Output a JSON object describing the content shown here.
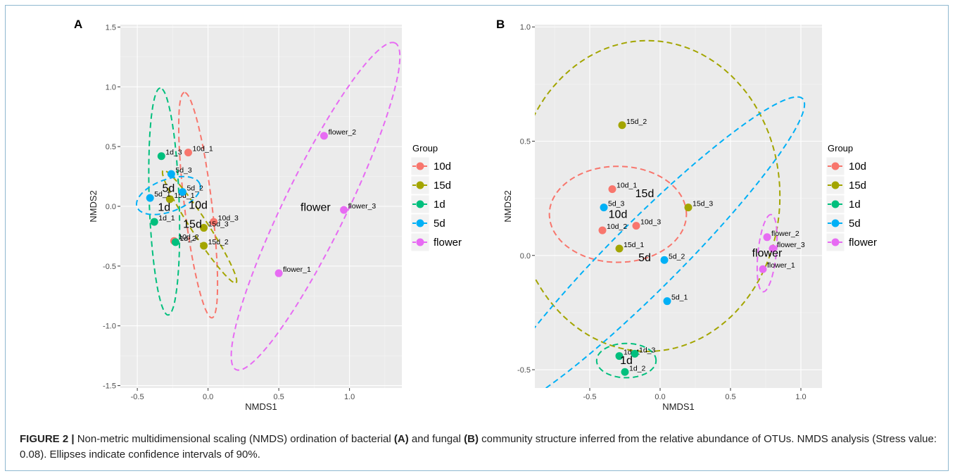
{
  "caption": {
    "figure_label": "FIGURE 2 |",
    "t1": " Non-metric multidimensional scaling (NMDS) ordination of bacterial ",
    "a_ref": "(A)",
    "t2": " and fungal ",
    "b_ref": "(B)",
    "t3": " community structure inferred from the relative abundance of OTUs. NMDS analysis (Stress value: 0.08). Ellipses indicate confidence intervals of 90%."
  },
  "colors": {
    "10d": "#f8766d",
    "15d": "#a3a500",
    "1d": "#00bf7d",
    "5d": "#00b0f6",
    "flower": "#e76bf3",
    "panel_bg": "#ebebeb",
    "grid": "#ffffff"
  },
  "chart_data": [
    {
      "type": "scatter",
      "panel_label": "A",
      "xlabel": "NMDS1",
      "ylabel": "NMDS2",
      "xlim": [
        -0.62,
        1.37
      ],
      "ylim": [
        -1.52,
        1.52
      ],
      "xticks": [
        -0.5,
        0.0,
        0.5,
        1.0
      ],
      "xtick_labels": [
        "-0.5",
        "0.0",
        "0.5",
        "1.0"
      ],
      "yticks": [
        -1.5,
        -1.0,
        -0.5,
        0.0,
        0.5,
        1.0,
        1.5
      ],
      "ytick_labels": [
        "-1.5",
        "-1.0",
        "-0.5",
        "0.0",
        "0.5",
        "1.0",
        "1.5"
      ],
      "grid": true,
      "legend": {
        "title": "Group",
        "placement": "right",
        "entries": [
          "10d",
          "15d",
          "1d",
          "5d",
          "flower"
        ]
      },
      "points": [
        {
          "label": "10d_1",
          "group": "10d",
          "x": -0.14,
          "y": 0.45
        },
        {
          "label": "10d_2",
          "group": "10d",
          "x": -0.24,
          "y": -0.29
        },
        {
          "label": "10d_3",
          "group": "10d",
          "x": 0.04,
          "y": -0.13
        },
        {
          "label": "15d_1",
          "group": "15d",
          "x": -0.27,
          "y": 0.06
        },
        {
          "label": "15d_2",
          "group": "15d",
          "x": -0.03,
          "y": -0.33
        },
        {
          "label": "15d_3",
          "group": "15d",
          "x": -0.03,
          "y": -0.18
        },
        {
          "label": "1d_1",
          "group": "1d",
          "x": -0.38,
          "y": -0.13
        },
        {
          "label": "1d_2",
          "group": "1d",
          "x": -0.23,
          "y": -0.3
        },
        {
          "label": "1d_3",
          "group": "1d",
          "x": -0.33,
          "y": 0.42
        },
        {
          "label": "5d_1",
          "group": "5d",
          "x": -0.41,
          "y": 0.07
        },
        {
          "label": "5d_2",
          "group": "5d",
          "x": -0.18,
          "y": 0.12
        },
        {
          "label": "5d_3",
          "group": "5d",
          "x": -0.26,
          "y": 0.27
        },
        {
          "label": "flower_1",
          "group": "flower",
          "x": 0.5,
          "y": -0.56
        },
        {
          "label": "flower_2",
          "group": "flower",
          "x": 0.82,
          "y": 0.59
        },
        {
          "label": "flower_3",
          "group": "flower",
          "x": 0.96,
          "y": -0.03
        }
      ],
      "group_labels": [
        {
          "text": "10d",
          "x": -0.07,
          "y": 0.01
        },
        {
          "text": "15d",
          "x": -0.11,
          "y": -0.15
        },
        {
          "text": "1d",
          "x": -0.31,
          "y": -0.01
        },
        {
          "text": "5d",
          "x": -0.28,
          "y": 0.15
        },
        {
          "text": "flower",
          "x": 0.76,
          "y": -0.01
        }
      ],
      "ellipses": [
        {
          "group": "10d",
          "cx": -0.07,
          "cy": 0.01,
          "rx": 0.95,
          "ry": 0.115,
          "angle_deg": 97
        },
        {
          "group": "15d",
          "cx": -0.06,
          "cy": -0.17,
          "rx": 0.56,
          "ry": 0.07,
          "angle_deg": -57
        },
        {
          "group": "1d",
          "cx": -0.31,
          "cy": 0.04,
          "rx": 0.95,
          "ry": 0.125,
          "angle_deg": 92
        },
        {
          "group": "5d",
          "cx": -0.28,
          "cy": 0.09,
          "rx": 0.28,
          "ry": 0.135,
          "angle_deg": 20
        },
        {
          "group": "flower",
          "cx": 0.76,
          "cy": 0.0,
          "rx": 1.52,
          "ry": 0.26,
          "angle_deg": 64
        }
      ]
    },
    {
      "type": "scatter",
      "panel_label": "B",
      "xlabel": "NMDS1",
      "ylabel": "NMDS2",
      "xlim": [
        -0.89,
        1.15
      ],
      "ylim": [
        -0.58,
        1.01
      ],
      "xticks": [
        -0.5,
        0.0,
        0.5,
        1.0
      ],
      "xtick_labels": [
        "-0.5",
        "0.0",
        "0.5",
        "1.0"
      ],
      "yticks": [
        -0.5,
        0.0,
        0.5,
        1.0
      ],
      "ytick_labels": [
        "-0.5",
        "0.0",
        "0.5",
        "1.0"
      ],
      "grid": true,
      "legend": {
        "title": "Group",
        "placement": "right",
        "entries": [
          "10d",
          "15d",
          "1d",
          "5d",
          "flower"
        ]
      },
      "points": [
        {
          "label": "10d_1",
          "group": "10d",
          "x": -0.34,
          "y": 0.29
        },
        {
          "label": "10d_2",
          "group": "10d",
          "x": -0.41,
          "y": 0.11
        },
        {
          "label": "10d_3",
          "group": "10d",
          "x": -0.17,
          "y": 0.13
        },
        {
          "label": "15d_1",
          "group": "15d",
          "x": -0.29,
          "y": 0.03
        },
        {
          "label": "15d_2",
          "group": "15d",
          "x": -0.27,
          "y": 0.57
        },
        {
          "label": "15d_3",
          "group": "15d",
          "x": 0.2,
          "y": 0.21
        },
        {
          "label": "1d_1",
          "group": "1d",
          "x": -0.29,
          "y": -0.44
        },
        {
          "label": "1d_2",
          "group": "1d",
          "x": -0.25,
          "y": -0.51
        },
        {
          "label": "1d_3",
          "group": "1d",
          "x": -0.18,
          "y": -0.43
        },
        {
          "label": "5d_1",
          "group": "5d",
          "x": 0.05,
          "y": -0.2
        },
        {
          "label": "5d_2",
          "group": "5d",
          "x": 0.03,
          "y": -0.02
        },
        {
          "label": "5d_3",
          "group": "5d",
          "x": -0.4,
          "y": 0.21
        },
        {
          "label": "flower_1",
          "group": "flower",
          "x": 0.73,
          "y": -0.06
        },
        {
          "label": "flower_2",
          "group": "flower",
          "x": 0.76,
          "y": 0.08
        },
        {
          "label": "flower_3",
          "group": "flower",
          "x": 0.8,
          "y": 0.03
        }
      ],
      "group_labels": [
        {
          "text": "10d",
          "x": -0.3,
          "y": 0.18
        },
        {
          "text": "15d",
          "x": -0.11,
          "y": 0.27
        },
        {
          "text": "1d",
          "x": -0.24,
          "y": -0.46
        },
        {
          "text": "5d",
          "x": -0.11,
          "y": -0.01
        },
        {
          "text": "flower",
          "x": 0.76,
          "y": 0.01
        }
      ],
      "ellipses": [
        {
          "group": "10d",
          "cx": -0.3,
          "cy": 0.18,
          "rx": 0.3,
          "ry": 0.21,
          "angle_deg": 0
        },
        {
          "group": "15d",
          "cx": -0.09,
          "cy": 0.26,
          "rx": 0.58,
          "ry": 0.68,
          "angle_deg": 0
        },
        {
          "group": "1d",
          "cx": -0.24,
          "cy": -0.46,
          "rx": 0.13,
          "ry": 0.075,
          "angle_deg": 0
        },
        {
          "group": "5d",
          "cx": -0.1,
          "cy": 0.0,
          "rx": 0.97,
          "ry": 0.15,
          "angle_deg": 45
        },
        {
          "group": "flower",
          "cx": 0.76,
          "cy": 0.01,
          "rx": 0.17,
          "ry": 0.04,
          "angle_deg": 84
        }
      ]
    }
  ]
}
